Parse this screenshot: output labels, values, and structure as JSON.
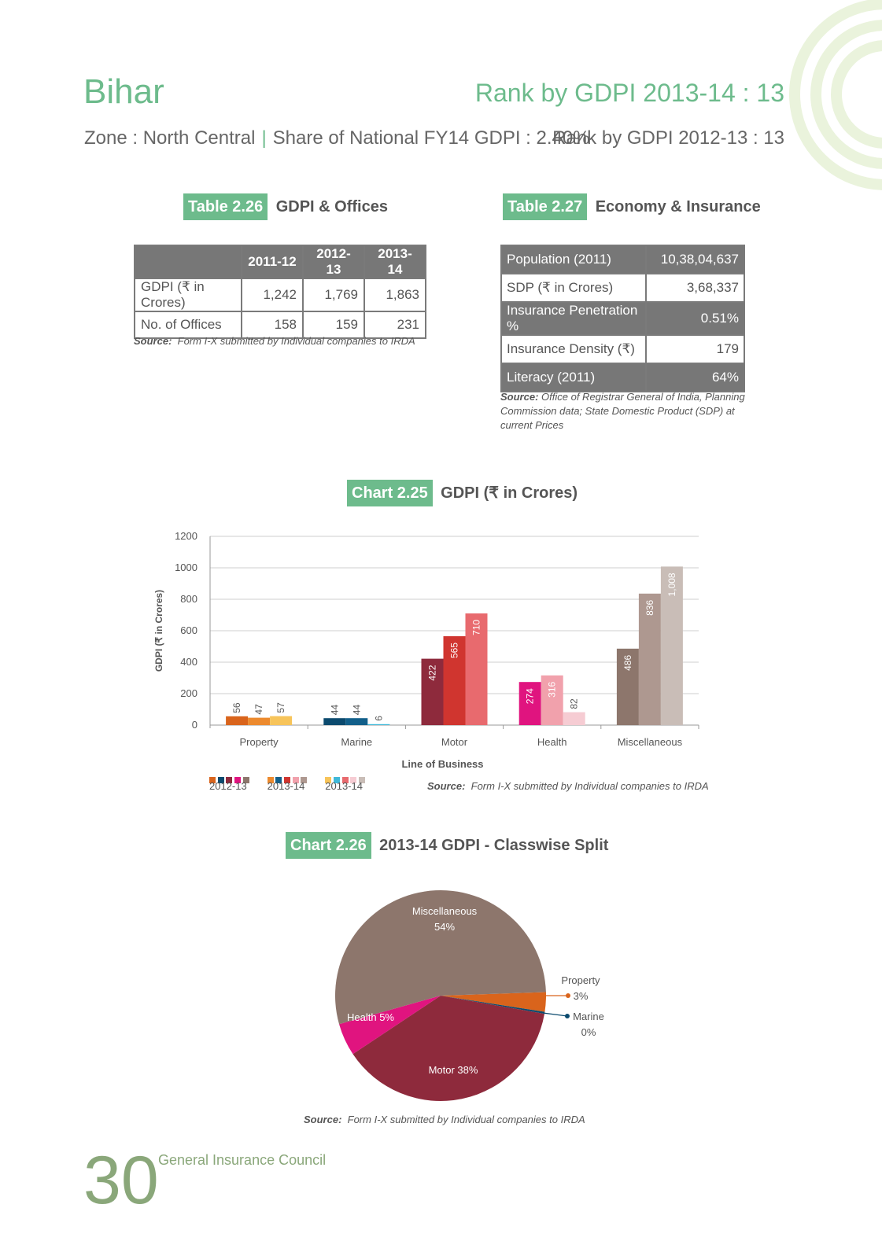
{
  "header": {
    "state": "Bihar",
    "rank_current": "Rank by GDPI 2013-14 : 13",
    "zone": "Zone : North Central",
    "share": "Share of National FY14 GDPI : 2.40%",
    "rank_prev": "Rank by GDPI 2012-13 : 13",
    "colors": {
      "accent": "#6dbb8c"
    }
  },
  "table_226": {
    "tag": "Table 2.26",
    "title": "GDPI & Offices",
    "headers": [
      "",
      "2011-12",
      "2012-13",
      "2013-14"
    ],
    "rows": [
      [
        "GDPI (₹ in Crores)",
        "1,242",
        "1,769",
        "1,863"
      ],
      [
        "No. of Offices",
        "158",
        "159",
        "231"
      ]
    ],
    "source_label": "Source:",
    "source_text": "Form I-X submitted by Individual companies to IRDA"
  },
  "table_227": {
    "tag": "Table 2.27",
    "title": "Economy & Insurance",
    "rows": [
      [
        "Population (2011)",
        "10,38,04,637"
      ],
      [
        "SDP (₹ in Crores)",
        "3,68,337"
      ],
      [
        "Insurance Penetration %",
        "0.51%"
      ],
      [
        "Insurance Density (₹)",
        "179"
      ],
      [
        "Literacy (2011)",
        "64%"
      ]
    ],
    "source_label": "Source:",
    "source_line1": "Office of Registrar General of India, Planning",
    "source_line2": "Commission data; State Domestic Product (SDP) at",
    "source_line3": "current Prices"
  },
  "chart_225": {
    "tag": "Chart 2.25",
    "title": "GDPI (₹ in Crores)",
    "legend": [
      "2012-13",
      "2013-14",
      "2013-14"
    ],
    "source_label": "Source:",
    "source_text": "Form I-X submitted by Individual companies to IRDA"
  },
  "chart_226": {
    "tag": "Chart 2.26",
    "title": "2013-14 GDPI - Classwise Split",
    "source_label": "Source:",
    "source_text": "Form I-X submitted by Individual companies to IRDA"
  },
  "footer": {
    "page_number": "30",
    "org": "General Insurance Council"
  },
  "chart_data": [
    {
      "type": "bar",
      "title": "GDPI (₹ in Crores)",
      "xlabel": "Line of Business",
      "ylabel": "GDPI (₹ in Crores)",
      "ylim": [
        0,
        1200
      ],
      "yticks": [
        0,
        200,
        400,
        600,
        800,
        1000,
        1200
      ],
      "grid": true,
      "categories": [
        "Property",
        "Marine",
        "Motor",
        "Health",
        "Miscellaneous"
      ],
      "series": [
        {
          "name": "2012-13",
          "values": [
            56,
            44,
            422,
            274,
            486
          ],
          "labels": [
            "56",
            "44",
            "422",
            "274",
            "486"
          ],
          "colors": [
            "#d9641c",
            "#0b4a6e",
            "#8e2a3c",
            "#e0147f",
            "#8d766c"
          ]
        },
        {
          "name": "2013-14",
          "values": [
            47,
            44,
            565,
            316,
            836
          ],
          "labels": [
            "47",
            "44",
            "565",
            "316",
            "836"
          ],
          "colors": [
            "#ec8a2e",
            "#125f8a",
            "#d0352f",
            "#f1a1ac",
            "#ae9890"
          ]
        },
        {
          "name": "2013-14",
          "values": [
            57,
            6,
            710,
            82,
            1008
          ],
          "labels": [
            "57",
            "6",
            "710",
            "82",
            "1,008"
          ],
          "colors": [
            "#f7c45a",
            "#3fb9d9",
            "#e86a6e",
            "#f6ccd3",
            "#c9bdb7"
          ]
        }
      ]
    },
    {
      "type": "pie",
      "title": "2013-14 GDPI - Classwise Split",
      "slices": [
        {
          "label": "Miscellaneous",
          "pct": "54%",
          "value": 54,
          "color": "#8d766c"
        },
        {
          "label": "Property",
          "pct": "3%",
          "value": 3,
          "color": "#d9641c"
        },
        {
          "label": "Marine",
          "pct": "0%",
          "value": 0.3,
          "color": "#0b4a6e"
        },
        {
          "label": "Motor",
          "pct": "Motor 38%",
          "value": 38,
          "color": "#8e2a3c"
        },
        {
          "label": "Health",
          "pct": "Health 5%",
          "value": 5,
          "color": "#e0147f"
        }
      ]
    }
  ]
}
